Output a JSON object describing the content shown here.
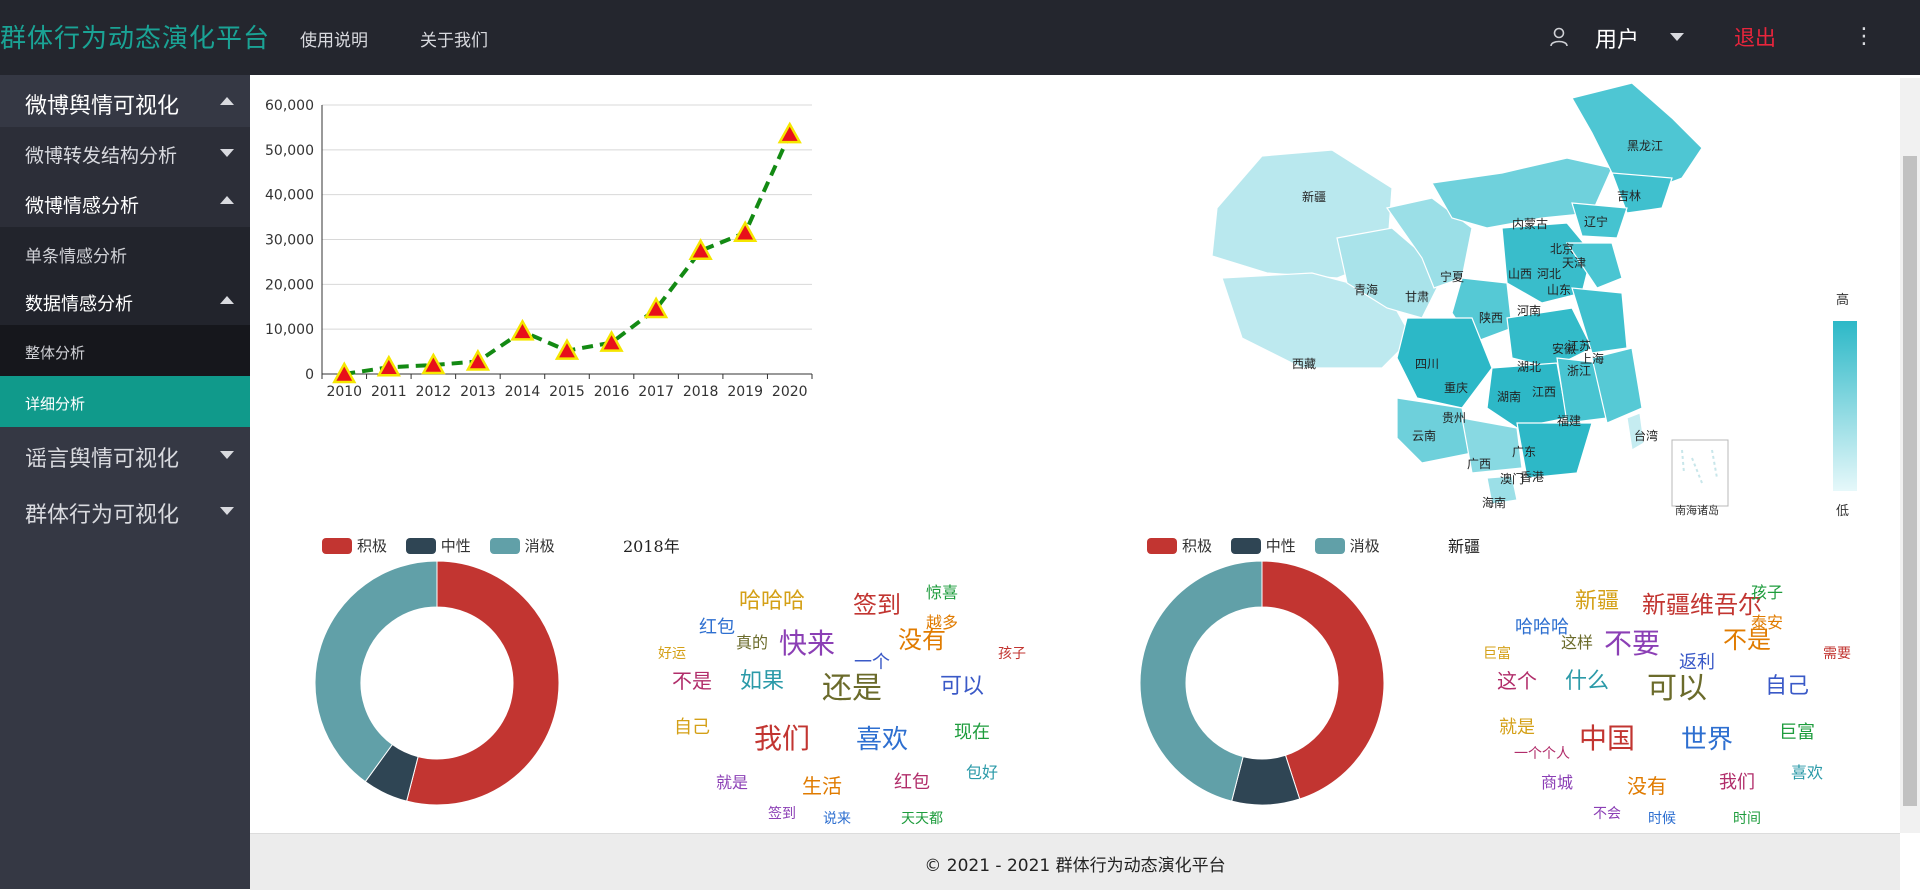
{
  "header": {
    "brand": "群体行为动态演化平台",
    "nav": [
      "使用说明",
      "关于我们"
    ],
    "user_label": "用户",
    "logout_label": "退出"
  },
  "sidebar": {
    "items": [
      {
        "label": "微博舆情可视化",
        "level": 0,
        "expanded": true
      },
      {
        "label": "微博转发结构分析",
        "level": 1,
        "expanded": false
      },
      {
        "label": "微博情感分析",
        "level": 1,
        "expanded": true
      },
      {
        "label": "单条情感分析",
        "level": 2
      },
      {
        "label": "数据情感分析",
        "level": 2,
        "expanded": true
      },
      {
        "label": "整体分析",
        "level": 3
      },
      {
        "label": "详细分析",
        "level": 3,
        "active": true
      },
      {
        "label": "谣言舆情可视化",
        "level": 0,
        "expanded": false
      },
      {
        "label": "群体行为可视化",
        "level": 0,
        "expanded": false
      }
    ]
  },
  "colors": {
    "brand": "#1aa395",
    "active_item": "#109a8b",
    "logout": "#e8253c",
    "positive": "#c23531",
    "neutral": "#2f4554",
    "negative": "#61a0a8",
    "line": "#138a13",
    "marker_fill": "#e8101a",
    "marker_stroke": "#f5e600"
  },
  "chart_data": [
    {
      "type": "line",
      "title": "",
      "x": [
        "2010",
        "2011",
        "2012",
        "2013",
        "2014",
        "2015",
        "2016",
        "2017",
        "2018",
        "2019",
        "2020"
      ],
      "series": [
        {
          "values": [
            0,
            1500,
            2000,
            2800,
            9500,
            5200,
            7000,
            14500,
            27500,
            31500,
            53500
          ]
        }
      ],
      "ylim": [
        0,
        60000
      ],
      "yticks": [
        "0",
        "10,000",
        "20,000",
        "30,000",
        "40,000",
        "50,000",
        "60,000"
      ],
      "grid": true,
      "line_style": "dashed",
      "marker": "triangle"
    },
    {
      "type": "pie",
      "variant": "donut",
      "legend": [
        "积极",
        "中性",
        "消极"
      ],
      "values": [
        54,
        6,
        40
      ]
    },
    {
      "type": "pie",
      "variant": "donut",
      "legend": [
        "积极",
        "中性",
        "消极"
      ],
      "values": [
        45,
        9,
        46
      ]
    }
  ],
  "map": {
    "provinces": [
      "新疆",
      "西藏",
      "青海",
      "甘肃",
      "宁夏",
      "内蒙古",
      "黑龙江",
      "吉林",
      "辽宁",
      "北京",
      "天津",
      "河北",
      "山西",
      "山东",
      "陕西",
      "河南",
      "四川",
      "重庆",
      "湖北",
      "安徽",
      "江苏",
      "上海",
      "浙江",
      "湖南",
      "江西",
      "福建",
      "贵州",
      "云南",
      "广西",
      "广东",
      "香港",
      "澳门",
      "海南",
      "台湾"
    ],
    "visual_map": {
      "high": "高",
      "low": "低"
    },
    "inset_label": "南海诸岛"
  },
  "wordclouds": [
    {
      "title": "2018年",
      "words": [
        "哈哈哈",
        "签到",
        "红包",
        "惊喜",
        "快来",
        "没有",
        "不是",
        "如果",
        "还是",
        "可以",
        "自己",
        "我们",
        "喜欢",
        "现在",
        "就是",
        "生活",
        "红包",
        "包好",
        "真的",
        "一个",
        "好运",
        "孩子",
        "说来",
        "天天都",
        "签到",
        "越多"
      ]
    },
    {
      "title": "新疆",
      "words": [
        "新疆",
        "新疆维吾尔",
        "哈哈哈",
        "孩子",
        "不要",
        "不是",
        "这个",
        "什么",
        "可以",
        "自己",
        "就是",
        "中国",
        "世界",
        "巨富",
        "商城",
        "没有",
        "我们",
        "喜欢",
        "这样",
        "返利",
        "巨富",
        "需要",
        "时候",
        "时间",
        "不会",
        "泰安",
        "一个个人"
      ]
    }
  ],
  "footer": {
    "text": "© 2021 - 2021 群体行为动态演化平台"
  }
}
